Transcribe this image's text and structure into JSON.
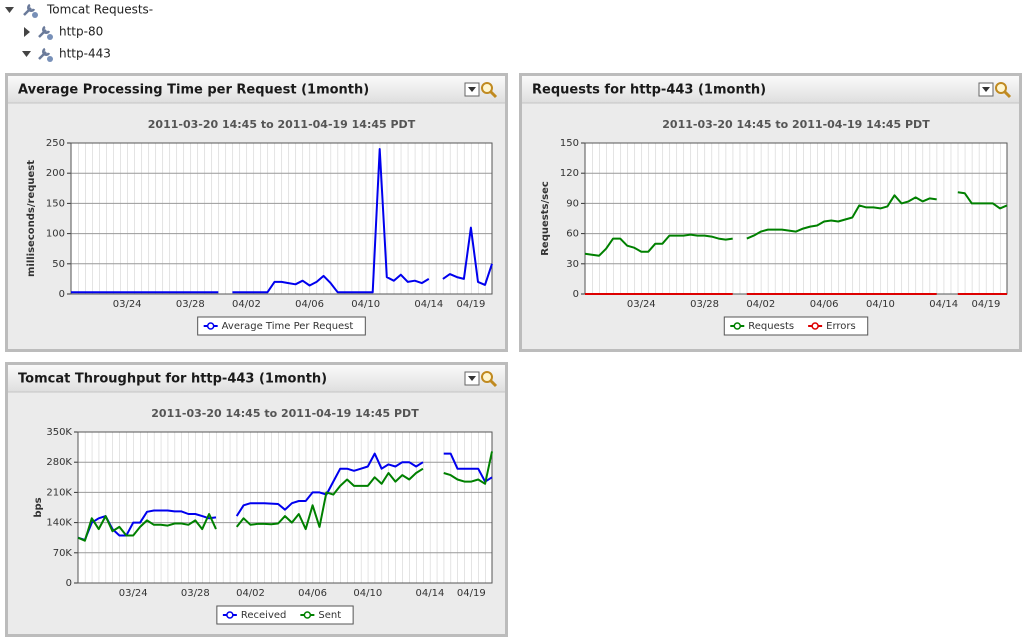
{
  "tree": [
    {
      "label": "Tomcat Requests-"
    },
    {
      "label": "http-80"
    },
    {
      "label": "http-443"
    }
  ],
  "chart_data": [
    {
      "type": "line",
      "title": "Average Processing Time per Request (1month)",
      "subtitle": "2011-03-20 14:45 to 2011-04-19 14:45 PDT",
      "ylabel": "milliseconds/request",
      "categories": [
        null,
        null,
        null,
        null,
        null,
        null,
        null,
        null,
        "03/24",
        null,
        null,
        null,
        null,
        null,
        null,
        null,
        null,
        "03/28",
        null,
        null,
        null,
        null,
        null,
        null,
        null,
        "04/02",
        null,
        null,
        null,
        null,
        null,
        null,
        null,
        null,
        "04/06",
        null,
        null,
        null,
        null,
        null,
        null,
        null,
        "04/10",
        null,
        null,
        null,
        null,
        null,
        null,
        null,
        null,
        "04/14",
        null,
        null,
        null,
        null,
        null,
        "04/19",
        null,
        null,
        null
      ],
      "series": [
        {
          "name": "Average Time Per Request",
          "color": "#0000ee",
          "values": [
            3,
            3,
            3,
            3,
            3,
            3,
            3,
            3,
            3,
            3,
            3,
            3,
            3,
            3,
            3,
            3,
            3,
            3,
            3,
            3,
            3,
            3,
            null,
            3,
            3,
            3,
            3,
            3,
            3,
            20,
            20,
            18,
            16,
            22,
            14,
            20,
            30,
            18,
            3,
            3,
            3,
            3,
            3,
            3,
            240,
            28,
            22,
            32,
            20,
            22,
            18,
            25,
            null,
            25,
            33,
            28,
            25,
            110,
            20,
            15,
            50
          ]
        }
      ],
      "ylim": [
        0,
        250
      ],
      "yticks": [
        0,
        50,
        100,
        150,
        200,
        250
      ],
      "grid": true
    },
    {
      "type": "line",
      "title": "Requests for http-443 (1month)",
      "subtitle": "2011-03-20 14:45 to 2011-04-19 14:45 PDT",
      "ylabel": "Requests/sec",
      "categories": [
        null,
        null,
        null,
        null,
        null,
        null,
        null,
        null,
        "03/24",
        null,
        null,
        null,
        null,
        null,
        null,
        null,
        null,
        "03/28",
        null,
        null,
        null,
        null,
        null,
        null,
        null,
        "04/02",
        null,
        null,
        null,
        null,
        null,
        null,
        null,
        null,
        "04/06",
        null,
        null,
        null,
        null,
        null,
        null,
        null,
        "04/10",
        null,
        null,
        null,
        null,
        null,
        null,
        null,
        null,
        "04/14",
        null,
        null,
        null,
        null,
        null,
        "04/19",
        null,
        null,
        null
      ],
      "series": [
        {
          "name": "Requests",
          "color": "#008000",
          "values": [
            40,
            39,
            38,
            45,
            55,
            55,
            48,
            46,
            42,
            42,
            50,
            50,
            58,
            58,
            58,
            59,
            58,
            58,
            57,
            55,
            54,
            55,
            null,
            55,
            58,
            62,
            64,
            64,
            64,
            63,
            62,
            65,
            67,
            68,
            72,
            73,
            72,
            74,
            76,
            88,
            86,
            86,
            85,
            87,
            98,
            90,
            92,
            96,
            92,
            95,
            94,
            null,
            null,
            101,
            100,
            90,
            90,
            90,
            90,
            85,
            88
          ]
        },
        {
          "name": "Errors",
          "color": "#dd0000",
          "values": [
            0,
            0,
            0,
            0,
            0,
            0,
            0,
            0,
            0,
            0,
            0,
            0,
            0,
            0,
            0,
            0,
            0,
            0,
            0,
            0,
            0,
            0,
            null,
            0,
            0,
            0,
            0,
            0,
            0,
            0,
            0,
            0,
            0,
            0,
            0,
            0,
            0,
            0,
            0,
            0,
            0,
            0,
            0,
            0,
            0,
            0,
            0,
            0,
            0,
            0,
            0,
            null,
            null,
            0,
            0,
            0,
            0,
            0,
            0,
            0,
            0
          ]
        }
      ],
      "ylim": [
        0,
        150
      ],
      "yticks": [
        0,
        30,
        60,
        90,
        120,
        150
      ],
      "grid": true
    },
    {
      "type": "line",
      "title": "Tomcat Throughput for http-443 (1month)",
      "subtitle": "2011-03-20 14:45 to 2011-04-19 14:45 PDT",
      "ylabel": "bps",
      "categories": [
        null,
        null,
        null,
        null,
        null,
        null,
        null,
        null,
        "03/24",
        null,
        null,
        null,
        null,
        null,
        null,
        null,
        null,
        "03/28",
        null,
        null,
        null,
        null,
        null,
        null,
        null,
        "04/02",
        null,
        null,
        null,
        null,
        null,
        null,
        null,
        null,
        "04/06",
        null,
        null,
        null,
        null,
        null,
        null,
        null,
        "04/10",
        null,
        null,
        null,
        null,
        null,
        null,
        null,
        null,
        "04/14",
        null,
        null,
        null,
        null,
        null,
        "04/19",
        null,
        null,
        null
      ],
      "series": [
        {
          "name": "Received",
          "color": "#0000ee",
          "values": [
            105000,
            100000,
            140000,
            150000,
            155000,
            125000,
            110000,
            110000,
            140000,
            140000,
            165000,
            168000,
            168000,
            168000,
            166000,
            166000,
            160000,
            160000,
            155000,
            150000,
            152000,
            null,
            null,
            155000,
            180000,
            185000,
            185000,
            185000,
            184000,
            183000,
            170000,
            185000,
            190000,
            190000,
            210000,
            210000,
            205000,
            235000,
            265000,
            265000,
            260000,
            265000,
            270000,
            300000,
            265000,
            275000,
            270000,
            280000,
            280000,
            270000,
            280000,
            null,
            null,
            300000,
            300000,
            265000,
            265000,
            265000,
            265000,
            235000,
            245000
          ]
        },
        {
          "name": "Sent",
          "color": "#008000",
          "values": [
            105000,
            98000,
            150000,
            125000,
            155000,
            120000,
            130000,
            110000,
            110000,
            130000,
            145000,
            135000,
            135000,
            133000,
            138000,
            138000,
            135000,
            145000,
            125000,
            160000,
            125000,
            null,
            null,
            130000,
            150000,
            135000,
            137000,
            137000,
            136000,
            138000,
            155000,
            140000,
            160000,
            125000,
            180000,
            130000,
            210000,
            205000,
            225000,
            240000,
            225000,
            225000,
            225000,
            245000,
            230000,
            255000,
            235000,
            250000,
            240000,
            255000,
            265000,
            null,
            null,
            255000,
            250000,
            240000,
            235000,
            235000,
            240000,
            230000,
            305000
          ]
        }
      ],
      "ylim": [
        0,
        350000
      ],
      "yticks": [
        0,
        {
          "value": 70000,
          "label": "70K"
        },
        {
          "value": 140000,
          "label": "140K"
        },
        {
          "value": 210000,
          "label": "210K"
        },
        {
          "value": 280000,
          "label": "280K"
        },
        {
          "value": 350000,
          "label": "350K"
        }
      ],
      "grid": true
    }
  ]
}
